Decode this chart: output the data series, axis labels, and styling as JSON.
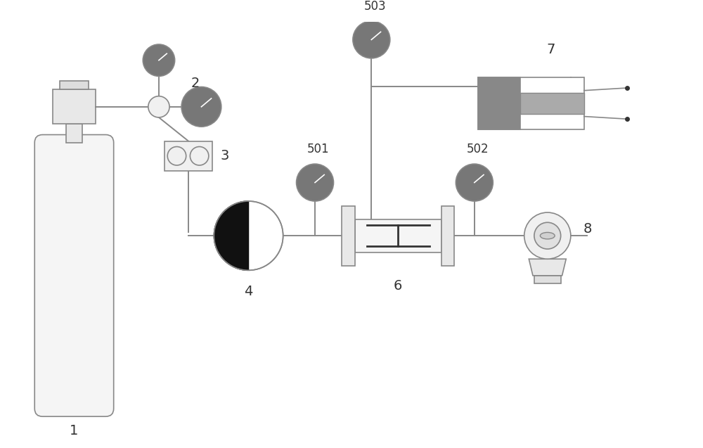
{
  "bg_color": "#ffffff",
  "line_color": "#888888",
  "dark_color": "#333333",
  "figsize": [
    10.0,
    6.37
  ],
  "dpi": 100
}
